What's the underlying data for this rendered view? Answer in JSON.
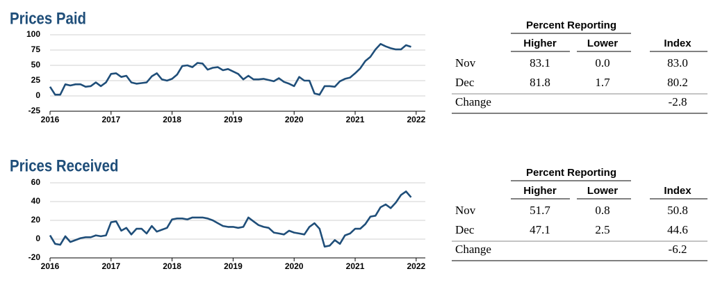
{
  "chart_data": [
    {
      "type": "line",
      "title": "Prices Paid",
      "x": [
        2016,
        2016.083,
        2016.167,
        2016.25,
        2016.333,
        2016.417,
        2016.5,
        2016.583,
        2016.667,
        2016.75,
        2016.833,
        2016.917,
        2017,
        2017.083,
        2017.167,
        2017.25,
        2017.333,
        2017.417,
        2017.5,
        2017.583,
        2017.667,
        2017.75,
        2017.833,
        2017.917,
        2018,
        2018.083,
        2018.167,
        2018.25,
        2018.333,
        2018.417,
        2018.5,
        2018.583,
        2018.667,
        2018.75,
        2018.833,
        2018.917,
        2019,
        2019.083,
        2019.167,
        2019.25,
        2019.333,
        2019.417,
        2019.5,
        2019.583,
        2019.667,
        2019.75,
        2019.833,
        2019.917,
        2020,
        2020.083,
        2020.167,
        2020.25,
        2020.333,
        2020.417,
        2020.5,
        2020.583,
        2020.667,
        2020.75,
        2020.833,
        2020.917,
        2021,
        2021.083,
        2021.167,
        2021.25,
        2021.333,
        2021.417,
        2021.5,
        2021.583,
        2021.667,
        2021.75,
        2021.833,
        2021.917
      ],
      "series": [
        {
          "color": "#1f4e79",
          "values": [
            15,
            2,
            2,
            19,
            17,
            19,
            19,
            15,
            16,
            22,
            16,
            22,
            36,
            37,
            31,
            33,
            22,
            20,
            21,
            22,
            32,
            37,
            27,
            25,
            28,
            35,
            49,
            50,
            47,
            54,
            53,
            43,
            46,
            47,
            42,
            44,
            40,
            36,
            27,
            33,
            27,
            27,
            28,
            26,
            24,
            29,
            23,
            20,
            16,
            31,
            25,
            25,
            4,
            2,
            16,
            16,
            15,
            24,
            28,
            30,
            37,
            45,
            57,
            64,
            76,
            85,
            81,
            78,
            76,
            76,
            83.0,
            80.2
          ]
        }
      ],
      "xlim": [
        2016,
        2022.15
      ],
      "xticks": [
        2016,
        2017,
        2018,
        2019,
        2020,
        2021,
        2022
      ],
      "ylim": [
        -25,
        100
      ],
      "yticks": [
        -25,
        0,
        25,
        50,
        75,
        100
      ],
      "grid": true
    },
    {
      "type": "line",
      "title": "Prices Received",
      "x": [
        2016,
        2016.083,
        2016.167,
        2016.25,
        2016.333,
        2016.417,
        2016.5,
        2016.583,
        2016.667,
        2016.75,
        2016.833,
        2016.917,
        2017,
        2017.083,
        2017.167,
        2017.25,
        2017.333,
        2017.417,
        2017.5,
        2017.583,
        2017.667,
        2017.75,
        2017.833,
        2017.917,
        2018,
        2018.083,
        2018.167,
        2018.25,
        2018.333,
        2018.417,
        2018.5,
        2018.583,
        2018.667,
        2018.75,
        2018.833,
        2018.917,
        2019,
        2019.083,
        2019.167,
        2019.25,
        2019.333,
        2019.417,
        2019.5,
        2019.583,
        2019.667,
        2019.75,
        2019.833,
        2019.917,
        2020,
        2020.083,
        2020.167,
        2020.25,
        2020.333,
        2020.417,
        2020.5,
        2020.583,
        2020.667,
        2020.75,
        2020.833,
        2020.917,
        2021,
        2021.083,
        2021.167,
        2021.25,
        2021.333,
        2021.417,
        2021.5,
        2021.583,
        2021.667,
        2021.75,
        2021.833,
        2021.917
      ],
      "series": [
        {
          "color": "#1f4e79",
          "values": [
            4,
            -5,
            -6,
            3,
            -3,
            -1,
            1,
            2,
            2,
            4,
            3,
            4,
            18,
            19,
            9,
            12,
            5,
            11,
            11,
            6,
            14,
            8,
            10,
            12,
            21,
            22,
            22,
            21,
            23,
            23,
            23,
            22,
            20,
            17,
            14,
            13,
            13,
            12,
            13,
            23,
            19,
            15,
            13,
            12,
            7,
            6,
            5,
            9,
            7,
            6,
            5,
            13,
            17,
            11,
            -8,
            -7,
            -1,
            -5,
            4,
            6,
            11,
            11,
            16,
            24,
            25,
            34,
            37,
            33,
            39,
            47,
            50.8,
            44.6
          ]
        }
      ],
      "xlim": [
        2016,
        2022.15
      ],
      "xticks": [
        2016,
        2017,
        2018,
        2019,
        2020,
        2021,
        2022
      ],
      "ylim": [
        -20,
        60
      ],
      "yticks": [
        -20,
        0,
        20,
        40,
        60
      ],
      "grid": true
    }
  ],
  "tables": [
    {
      "group_header": "Percent Reporting",
      "columns": [
        "Higher",
        "Lower",
        "Index"
      ],
      "rows": [
        {
          "label": "Nov",
          "higher": "83.1",
          "lower": "0.0",
          "index": "83.0"
        },
        {
          "label": "Dec",
          "higher": "81.8",
          "lower": "1.7",
          "index": "80.2"
        },
        {
          "label": "Change",
          "index": "-2.8"
        }
      ]
    },
    {
      "group_header": "Percent Reporting",
      "columns": [
        "Higher",
        "Lower",
        "Index"
      ],
      "rows": [
        {
          "label": "Nov",
          "higher": "51.7",
          "lower": "0.8",
          "index": "50.8"
        },
        {
          "label": "Dec",
          "higher": "47.1",
          "lower": "2.5",
          "index": "44.6"
        },
        {
          "label": "Change",
          "index": "-6.2"
        }
      ]
    }
  ]
}
